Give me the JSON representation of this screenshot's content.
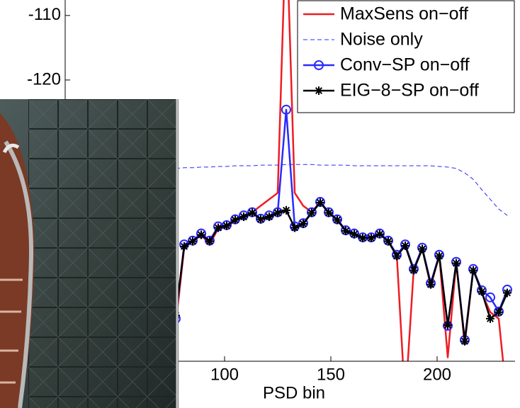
{
  "chart_data": {
    "type": "line",
    "x_label": "PSD bin",
    "x": [
      77,
      81,
      85,
      89,
      93,
      97,
      101,
      105,
      109,
      113,
      117,
      121,
      125,
      129,
      133,
      137,
      141,
      145,
      149,
      153,
      157,
      161,
      165,
      169,
      173,
      177,
      181,
      185,
      189,
      193,
      197,
      201,
      205,
      209,
      213,
      217,
      221,
      225,
      229,
      233
    ],
    "xlim": [
      25,
      236
    ],
    "xticks": [
      100,
      150,
      200
    ],
    "ylim": [
      -163.6,
      -107.6
    ],
    "yticks": [
      -120,
      -110
    ],
    "legend": "top-right",
    "series": [
      {
        "name": "MaxSens on−off",
        "color": "#ee1c24",
        "dash": "solid",
        "marker": "none",
        "values": [
          -158,
          -146,
          -145,
          -144,
          -145.5,
          -143,
          -142.8,
          -141.8,
          -141,
          -140.5,
          -139.5,
          -138.5,
          -137.5,
          -95,
          -137.5,
          -139.5,
          -140.5,
          -138.9,
          -140.5,
          -141.6,
          -143.3,
          -143.8,
          -144.4,
          -144.4,
          -143.8,
          -145,
          -147,
          -170,
          -149.3,
          -146,
          -152,
          -147.1,
          -163,
          -148.2,
          -161,
          -149.3,
          -153,
          -156,
          -157,
          -170
        ]
      },
      {
        "name": "Noise only",
        "color": "#2a2aff",
        "dash": "dashed",
        "marker": "none",
        "values": [
          -133.7,
          -133.6,
          -133.6,
          -133.5,
          -133.5,
          -133.4,
          -133.4,
          -133.3,
          -133.3,
          -133.3,
          -133.2,
          -133.2,
          -133.2,
          -133.1,
          -133.1,
          -133.1,
          -133.1,
          -133.2,
          -133.2,
          -133.2,
          -133.2,
          -133.3,
          -133.3,
          -133.3,
          -133.3,
          -133.3,
          -133.3,
          -133.3,
          -133.3,
          -133.3,
          -133.3,
          -133.4,
          -133.5,
          -133.7,
          -134.4,
          -135.4,
          -137,
          -138.5,
          -140,
          -141
        ]
      },
      {
        "name": "Conv−SP on−off",
        "color": "#2a2aff",
        "dash": "solid",
        "marker": "circle",
        "values": [
          -157,
          -145.5,
          -144.9,
          -143.8,
          -144.9,
          -142.7,
          -142.5,
          -141.6,
          -141,
          -140.5,
          -141.5,
          -141,
          -140.5,
          -124.6,
          -142.7,
          -142.2,
          -140.5,
          -138.9,
          -140.5,
          -141.6,
          -143.3,
          -143.8,
          -144.4,
          -144.4,
          -143.8,
          -144.9,
          -147.1,
          -145.5,
          -149.3,
          -146,
          -151.5,
          -147.1,
          -158.1,
          -148.2,
          -160.3,
          -149.3,
          -152.6,
          -153.7,
          -155.9,
          -152.5
        ]
      },
      {
        "name": "EIG−8−SP on−off",
        "color": "#000000",
        "dash": "solid",
        "marker": "star",
        "values": [
          -156.5,
          -145.8,
          -145,
          -144,
          -145,
          -142.9,
          -142.6,
          -141.7,
          -141.2,
          -140.6,
          -141.6,
          -141.2,
          -140.6,
          -140.2,
          -142.9,
          -142.3,
          -140.6,
          -139,
          -140.6,
          -141.7,
          -143.4,
          -143.9,
          -144.5,
          -144.5,
          -143.9,
          -145,
          -147.3,
          -145.7,
          -149.5,
          -146.2,
          -151.7,
          -147.3,
          -158,
          -148.4,
          -160.5,
          -149.5,
          -152.8,
          -157,
          -156,
          -153
        ]
      }
    ]
  }
}
